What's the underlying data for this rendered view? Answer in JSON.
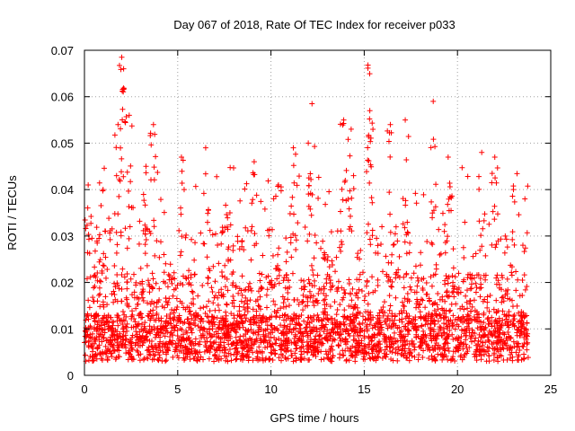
{
  "chart_data": {
    "type": "scatter",
    "title": "Day 067 of 2018, Rate Of TEC Index for receiver p033",
    "xlabel": "GPS time / hours",
    "ylabel": "ROTI / TECUs",
    "xlim": [
      0,
      25
    ],
    "ylim": [
      0,
      0.07
    ],
    "xticks": [
      0,
      5,
      10,
      15,
      20,
      25
    ],
    "yticks": [
      0,
      0.01,
      0.02,
      0.03,
      0.04,
      0.05,
      0.06,
      0.07
    ],
    "xtick_labels": [
      "0",
      "5",
      "10",
      "15",
      "20",
      "25"
    ],
    "ytick_labels": [
      "0",
      "0.01",
      "0.02",
      "0.03",
      "0.04",
      "0.05",
      "0.06",
      "0.07"
    ],
    "grid": true,
    "marker": "+",
    "marker_color": "#ff0000",
    "series": [
      {
        "name": "ROTI",
        "summary": "dense cloud of points 0–23.8 h; bulk 0.003–0.02 TECU, frequent spikes to 0.03–0.045",
        "peaks": [
          {
            "x": 0.2,
            "y": 0.041
          },
          {
            "x": 1.0,
            "y": 0.04
          },
          {
            "x": 1.8,
            "y": 0.054
          },
          {
            "x": 2.0,
            "y": 0.0685
          },
          {
            "x": 2.1,
            "y": 0.066
          },
          {
            "x": 2.4,
            "y": 0.056
          },
          {
            "x": 3.3,
            "y": 0.045
          },
          {
            "x": 3.7,
            "y": 0.054
          },
          {
            "x": 5.2,
            "y": 0.047
          },
          {
            "x": 6.5,
            "y": 0.049
          },
          {
            "x": 7.8,
            "y": 0.035
          },
          {
            "x": 9.1,
            "y": 0.046
          },
          {
            "x": 10.4,
            "y": 0.041
          },
          {
            "x": 11.2,
            "y": 0.049
          },
          {
            "x": 12.0,
            "y": 0.05
          },
          {
            "x": 12.2,
            "y": 0.0585
          },
          {
            "x": 13.9,
            "y": 0.055
          },
          {
            "x": 14.3,
            "y": 0.053
          },
          {
            "x": 15.2,
            "y": 0.0668
          },
          {
            "x": 15.3,
            "y": 0.057
          },
          {
            "x": 16.4,
            "y": 0.054
          },
          {
            "x": 17.2,
            "y": 0.055
          },
          {
            "x": 18.7,
            "y": 0.059
          },
          {
            "x": 19.5,
            "y": 0.047
          },
          {
            "x": 21.3,
            "y": 0.048
          },
          {
            "x": 22.0,
            "y": 0.047
          },
          {
            "x": 23.0,
            "y": 0.04
          }
        ]
      }
    ]
  }
}
